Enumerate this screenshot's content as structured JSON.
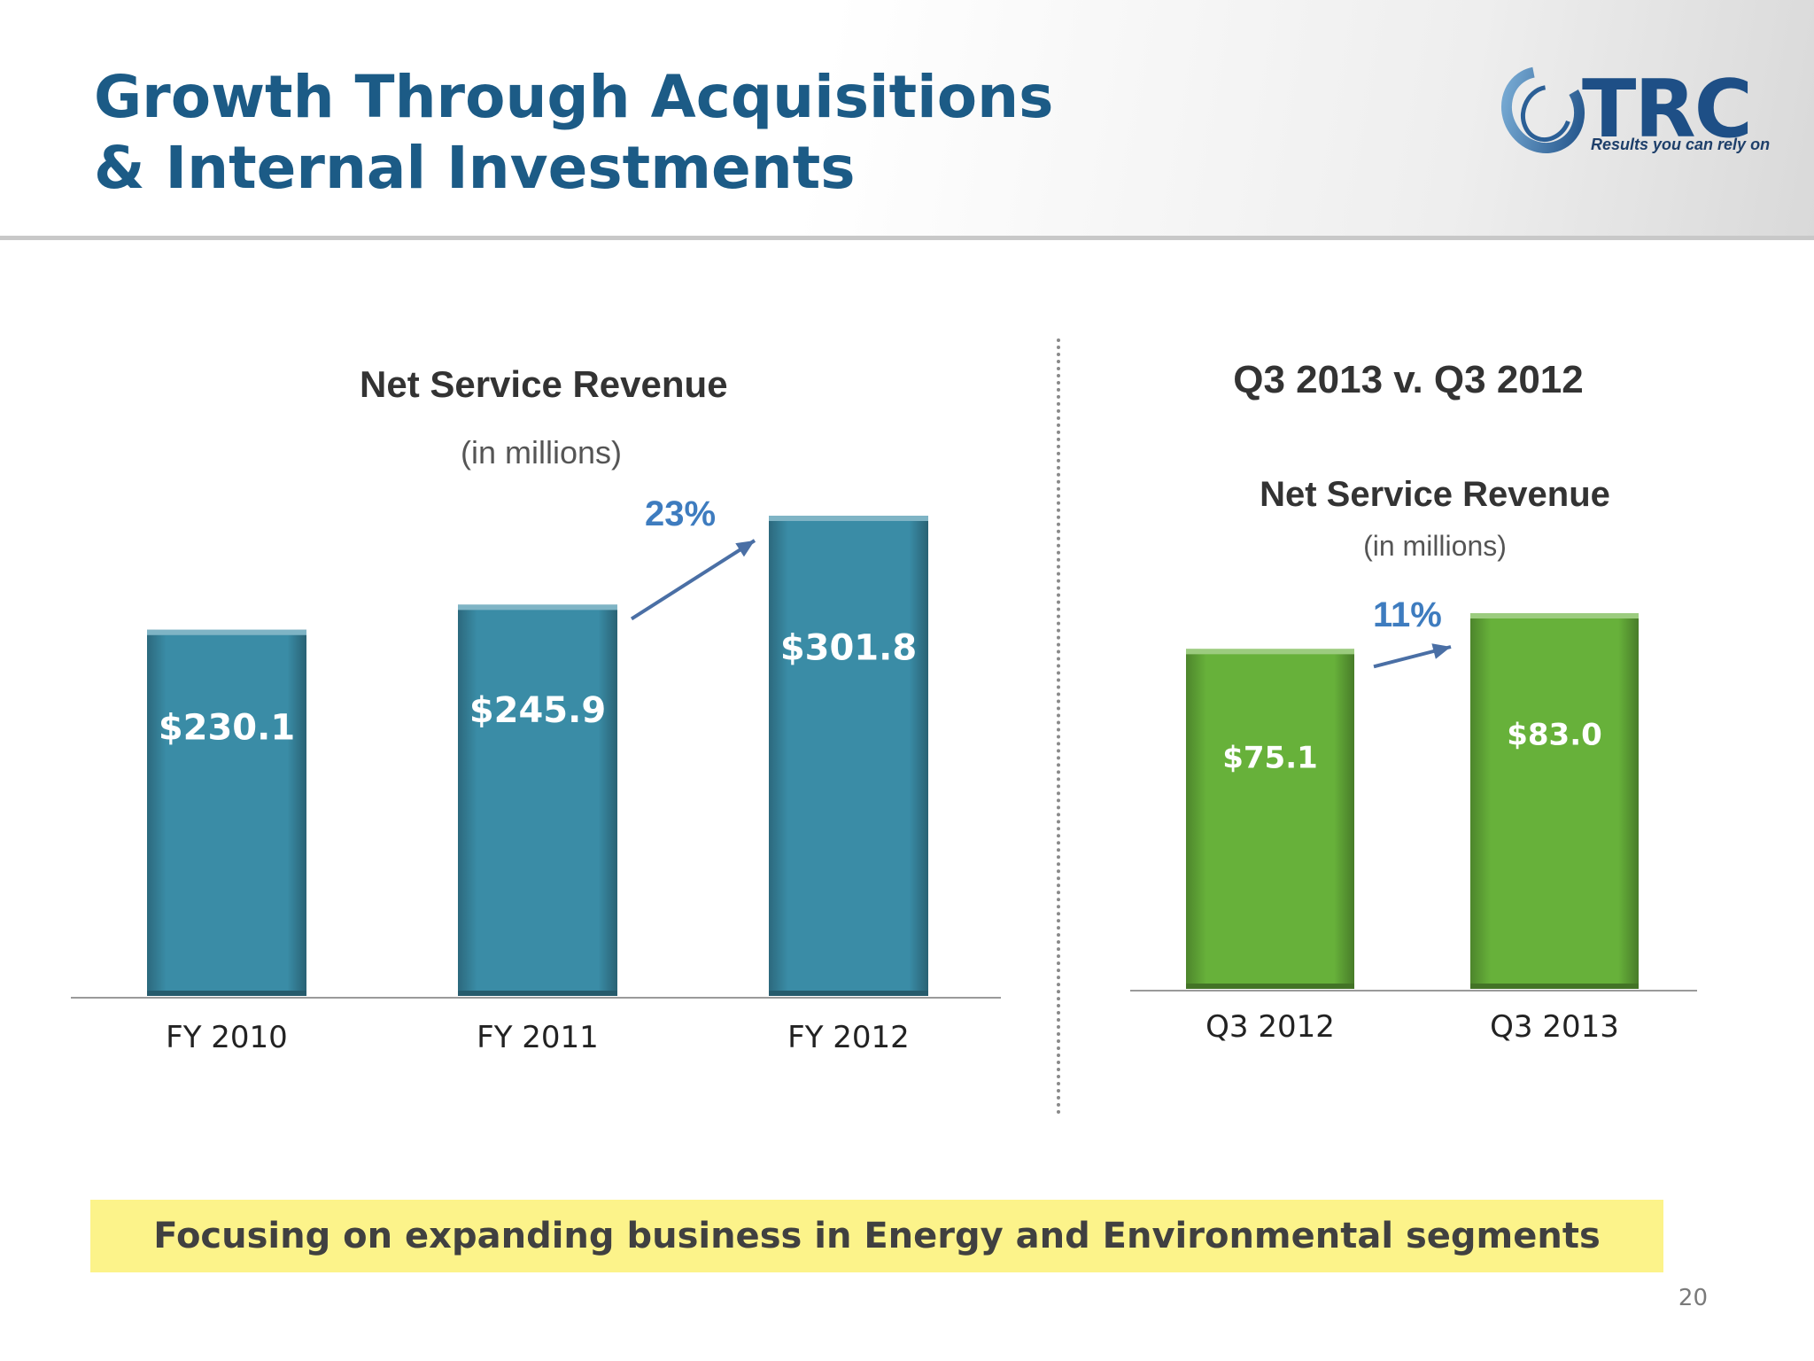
{
  "page": {
    "title_line1": "Growth Through Acquisitions",
    "title_line2": "& Internal Investments",
    "logo_text": "TRC",
    "logo_tagline": "Results you can rely on",
    "comparison_title": "Q3 2013 v. Q3 2012",
    "callout": "Focusing on expanding business in Energy and Environmental segments",
    "page_number": "20"
  },
  "colors": {
    "title": "#1c5b86",
    "annual_bar": "#3a8ca6",
    "quarterly_bar": "#67b13a",
    "callout_bg": "#fcf38a",
    "growth_arrow": "#4a6fa5"
  },
  "chart_data": [
    {
      "type": "bar",
      "title": "Net Service Revenue",
      "subtitle": "(in millions)",
      "categories": [
        "FY 2010",
        "FY 2011",
        "FY 2012"
      ],
      "values": [
        230.1,
        245.9,
        301.8
      ],
      "data_labels": [
        "$230.1",
        "$245.9",
        "$301.8"
      ],
      "growth_annotation": "23%",
      "ylim": [
        0,
        301.8
      ],
      "grid": false,
      "legend": "none"
    },
    {
      "type": "bar",
      "title": "Net Service Revenue",
      "subtitle": "(in millions)",
      "categories": [
        "Q3 2012",
        "Q3 2013"
      ],
      "values": [
        75.1,
        83.0
      ],
      "data_labels": [
        "$75.1",
        "$83.0"
      ],
      "growth_annotation": "11%",
      "ylim": [
        0,
        83.0
      ],
      "grid": false,
      "legend": "none"
    }
  ]
}
